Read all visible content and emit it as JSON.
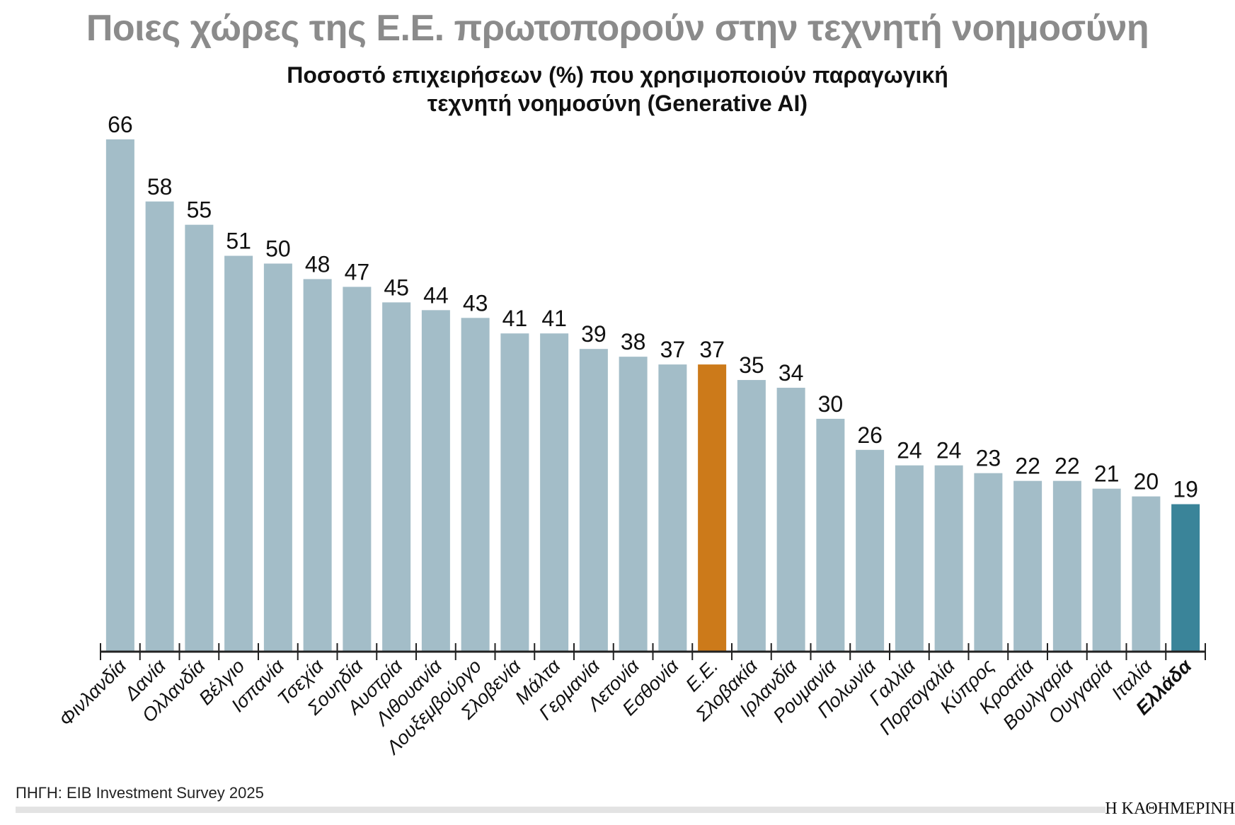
{
  "title": "Ποιες χώρες της Ε.Ε. πρωτοπορούν στην τεχνητή νοημοσύνη",
  "subtitle_line1": "Ποσοστό επιχειρήσεων (%) που χρησιμοποιούν παραγωγική",
  "subtitle_line2": "τεχνητή νοημοσύνη (Generative AI)",
  "source": "ΠΗΓΗ: EIB Investment Survey 2025",
  "logo": "Η ΚΑΘΗΜΕΡΙΝΗ",
  "colors": {
    "default": "#a3bdc8",
    "eu": "#cc7a1a",
    "greece": "#3a8499",
    "axis": "#222222"
  },
  "chart_data": {
    "type": "bar",
    "title": "Ποιες χώρες της Ε.Ε. πρωτοπορούν στην τεχνητή νοημοσύνη",
    "subtitle": "Ποσοστό επιχειρήσεων (%) που χρησιμοποιούν παραγωγική τεχνητή νοημοσύνη (Generative AI)",
    "xlabel": "",
    "ylabel": "",
    "ylim": [
      0,
      66
    ],
    "grid": false,
    "categories": [
      "Φινλανδία",
      "Δανία",
      "Ολλανδία",
      "Βέλγιο",
      "Ισπανία",
      "Τσεχία",
      "Σουηδία",
      "Αυστρία",
      "Λιθουανία",
      "Λουξεμβούργο",
      "Σλοβενία",
      "Μάλτα",
      "Γερμανία",
      "Λετονία",
      "Εσθονία",
      "Ε.Ε.",
      "Σλοβακία",
      "Ιρλανδία",
      "Ρουμανία",
      "Πολωνία",
      "Γαλλία",
      "Πορτογαλία",
      "Κύπρος",
      "Κροατία",
      "Βουλγαρία",
      "Ουγγαρία",
      "Ιταλία",
      "Ελλάδα"
    ],
    "values": [
      66,
      58,
      55,
      51,
      50,
      48,
      47,
      45,
      44,
      43,
      41,
      41,
      39,
      38,
      37,
      37,
      35,
      34,
      30,
      26,
      24,
      24,
      23,
      22,
      22,
      21,
      20,
      19
    ],
    "highlights": {
      "Ε.Ε.": "eu",
      "Ελλάδα": "greece"
    }
  }
}
